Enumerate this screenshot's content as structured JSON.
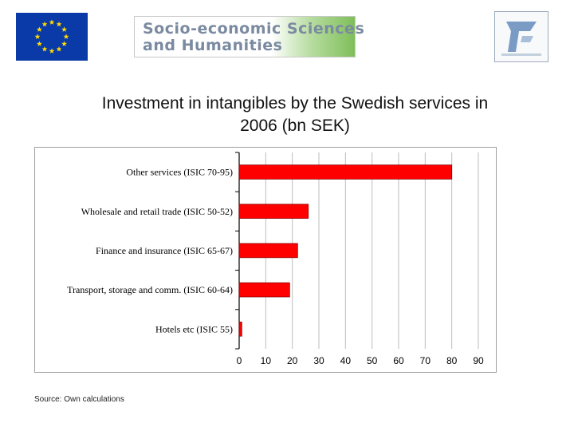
{
  "slide": {
    "title_line1": "Investment in intangibles by the Swedish services in",
    "title_line2": "2006 (bn SEK)",
    "source": "Source: Own calculations"
  },
  "logos": {
    "ssh_line1": "Socio-economic Sciences",
    "ssh_line2": "and Humanities",
    "eu_flag_color": "#0a3aa8",
    "eu_star_color": "#ffdd00"
  },
  "chart_data": {
    "type": "bar",
    "orientation": "horizontal",
    "categories": [
      "Other services (ISIC 70-95)",
      "Wholesale and retail trade (ISIC 50-52)",
      "Finance and insurance (ISIC 65-67)",
      "Transport, storage and comm. (ISIC 60-64)",
      "Hotels etc (ISIC 55)"
    ],
    "values": [
      80,
      26,
      22,
      19,
      1
    ],
    "xlim": [
      0,
      90
    ],
    "xticks": [
      0,
      10,
      20,
      30,
      40,
      50,
      60,
      70,
      80,
      90
    ],
    "grid": "vertical",
    "bar_color": "#ff0000",
    "bar_edge_color": "#8b0000",
    "grid_color": "#bdbdbd",
    "title": "",
    "xlabel": "",
    "ylabel": ""
  }
}
